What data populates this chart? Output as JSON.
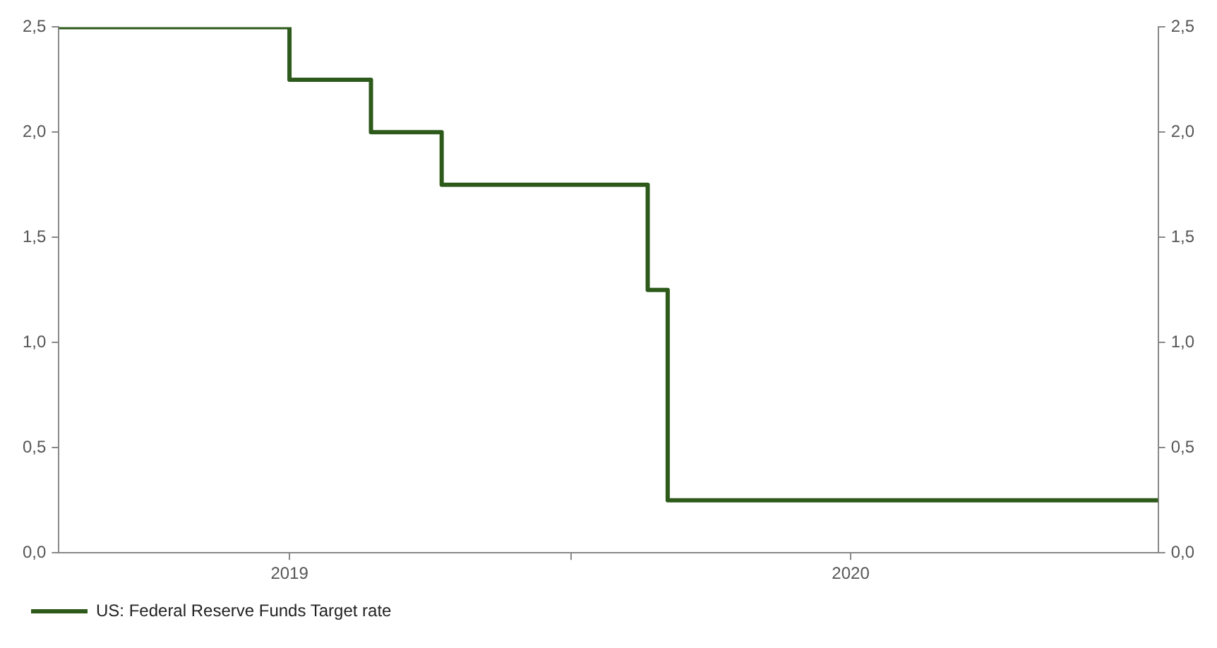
{
  "chart_data": {
    "type": "step",
    "x": [
      "2019-02-02",
      "2019-07-02",
      "2019-08-24",
      "2019-10-09",
      "2020-02-20",
      "2020-03-04",
      "2021-01-17"
    ],
    "series": [
      {
        "name": "US: Federal Reserve Funds Target rate",
        "color": "#2d5a1b",
        "values": [
          2.5,
          2.25,
          2.0,
          1.75,
          1.25,
          0.25,
          0.25
        ]
      }
    ],
    "xlim": [
      "2019-02-02",
      "2021-01-17"
    ],
    "xticks": [
      {
        "value": "2019-07-02",
        "label": "2019"
      },
      {
        "value": "2020-01-01",
        "label": null
      },
      {
        "value": "2020-07-01",
        "label": "2020"
      }
    ],
    "ylim": [
      0,
      2.5
    ],
    "yticks": [
      {
        "value": 0,
        "label": "0,0"
      },
      {
        "value": 0.5,
        "label": "0,5"
      },
      {
        "value": 1,
        "label": "1,0"
      },
      {
        "value": 1.5,
        "label": "1,5"
      },
      {
        "value": 2,
        "label": "2,0"
      },
      {
        "value": 2.5,
        "label": "2,5"
      }
    ],
    "y2lim": [
      0,
      2.5
    ],
    "y2ticks": [
      {
        "value": 0,
        "label": "0,0"
      },
      {
        "value": 0.5,
        "label": "0,5"
      },
      {
        "value": 1,
        "label": "1,0"
      },
      {
        "value": 1.5,
        "label": "1,5"
      },
      {
        "value": 2,
        "label": "2,0"
      },
      {
        "value": 2.5,
        "label": "2,5"
      }
    ],
    "grid": false,
    "legend": "bottom left",
    "line_style": "solid",
    "marker": "none"
  }
}
